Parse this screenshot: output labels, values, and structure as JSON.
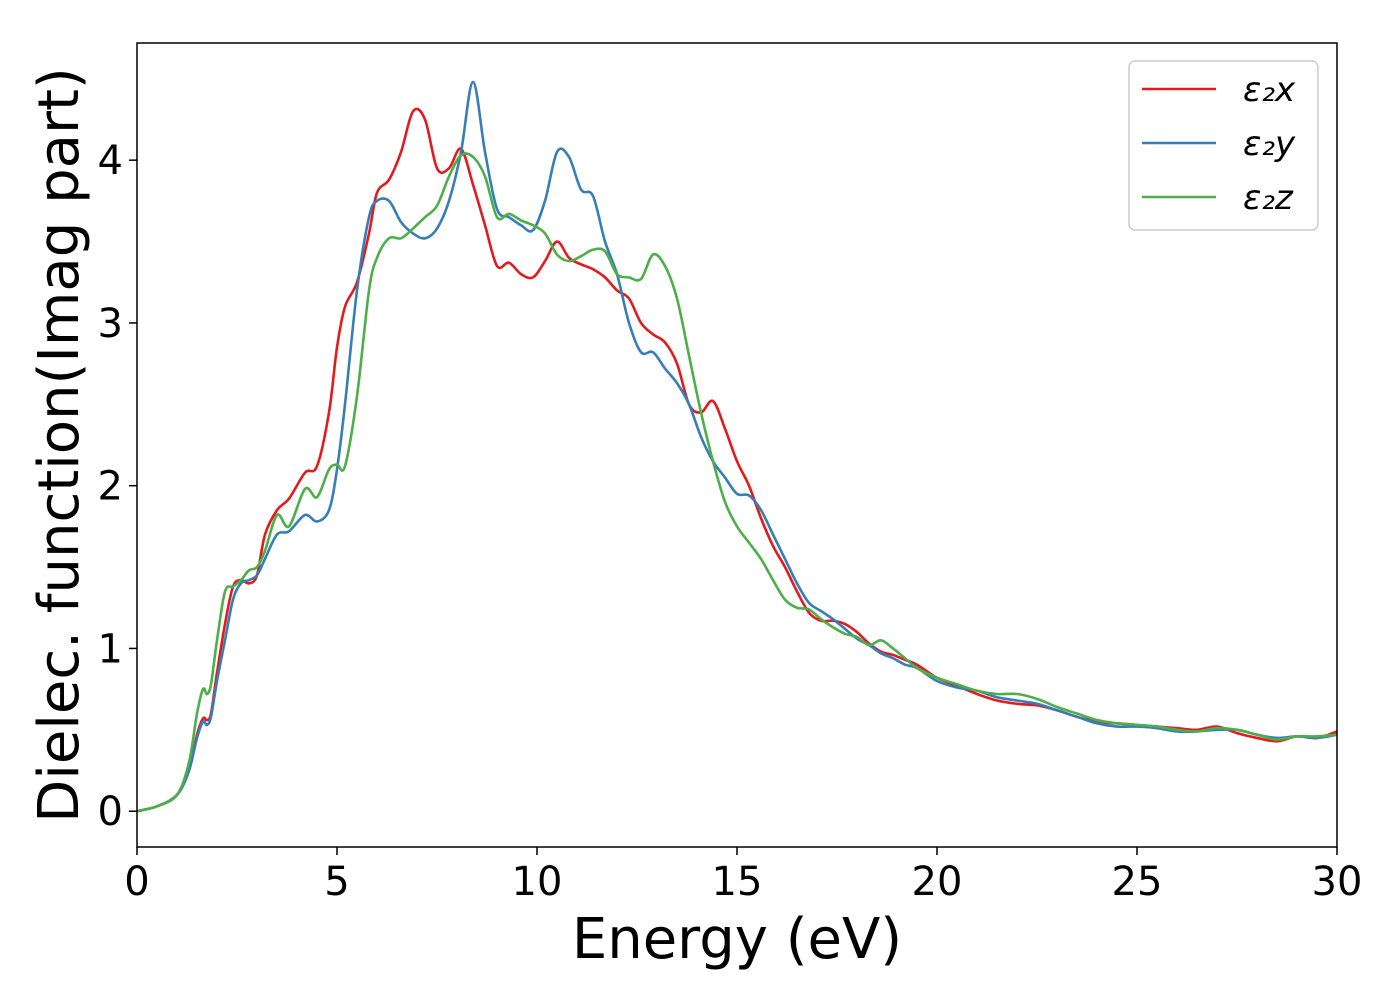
{
  "chart_data": {
    "type": "line",
    "title": "",
    "xlabel": "Energy (eV)",
    "ylabel": "Dielec. function(Imag part)",
    "xlim": [
      0,
      30
    ],
    "ylim": [
      -0.22,
      4.72
    ],
    "xticks": [
      0,
      5,
      10,
      15,
      20,
      25,
      30
    ],
    "yticks": [
      0,
      1,
      2,
      3,
      4
    ],
    "grid": false,
    "legend": "top-right",
    "series": [
      {
        "name": "ε₂x",
        "color": "#e41a1c",
        "x": [
          0,
          0.5,
          1.0,
          1.3,
          1.5,
          1.65,
          1.75,
          1.85,
          2.0,
          2.2,
          2.4,
          2.6,
          2.8,
          3.0,
          3.2,
          3.5,
          3.8,
          4.2,
          4.5,
          4.8,
          5.0,
          5.2,
          5.5,
          5.8,
          6.0,
          6.3,
          6.6,
          6.9,
          7.2,
          7.5,
          7.8,
          8.1,
          8.4,
          8.7,
          9.0,
          9.3,
          9.6,
          9.9,
          10.2,
          10.5,
          10.8,
          11.1,
          11.4,
          11.7,
          12.0,
          12.3,
          12.6,
          12.9,
          13.2,
          13.5,
          13.8,
          14.1,
          14.4,
          14.7,
          15.0,
          15.3,
          15.6,
          15.9,
          16.2,
          16.5,
          16.8,
          17.1,
          17.4,
          17.7,
          18.0,
          18.3,
          18.6,
          18.9,
          19.2,
          19.5,
          20.0,
          20.5,
          21.0,
          21.5,
          22.0,
          22.5,
          23.0,
          23.5,
          24.0,
          24.5,
          25.0,
          25.5,
          26.0,
          26.5,
          27.0,
          27.5,
          28.0,
          28.5,
          29.0,
          29.5,
          30.0
        ],
        "values": [
          0,
          0.03,
          0.1,
          0.25,
          0.47,
          0.57,
          0.56,
          0.6,
          0.85,
          1.15,
          1.38,
          1.42,
          1.4,
          1.45,
          1.7,
          1.85,
          1.92,
          2.08,
          2.12,
          2.45,
          2.85,
          3.1,
          3.25,
          3.55,
          3.8,
          3.88,
          4.05,
          4.3,
          4.25,
          3.95,
          3.95,
          4.07,
          3.85,
          3.6,
          3.35,
          3.37,
          3.3,
          3.28,
          3.38,
          3.5,
          3.4,
          3.36,
          3.33,
          3.28,
          3.2,
          3.15,
          3.0,
          2.93,
          2.88,
          2.75,
          2.5,
          2.45,
          2.52,
          2.35,
          2.15,
          2.0,
          1.8,
          1.63,
          1.5,
          1.35,
          1.22,
          1.17,
          1.17,
          1.15,
          1.1,
          1.03,
          0.98,
          0.96,
          0.93,
          0.9,
          0.82,
          0.77,
          0.72,
          0.68,
          0.66,
          0.65,
          0.62,
          0.58,
          0.55,
          0.54,
          0.53,
          0.52,
          0.51,
          0.5,
          0.52,
          0.48,
          0.45,
          0.43,
          0.46,
          0.45,
          0.49
        ]
      },
      {
        "name": "ε₂y",
        "color": "#377eb8",
        "x": [
          0,
          0.5,
          1.0,
          1.3,
          1.5,
          1.65,
          1.75,
          1.85,
          2.0,
          2.2,
          2.4,
          2.6,
          2.8,
          3.0,
          3.2,
          3.5,
          3.8,
          4.2,
          4.5,
          4.8,
          5.0,
          5.2,
          5.5,
          5.8,
          6.0,
          6.3,
          6.6,
          6.9,
          7.2,
          7.5,
          7.8,
          8.1,
          8.4,
          8.7,
          9.0,
          9.3,
          9.6,
          9.9,
          10.2,
          10.5,
          10.8,
          11.1,
          11.4,
          11.7,
          12.0,
          12.3,
          12.6,
          12.9,
          13.2,
          13.5,
          13.8,
          14.1,
          14.4,
          14.7,
          15.0,
          15.3,
          15.6,
          15.9,
          16.2,
          16.5,
          16.8,
          17.1,
          17.4,
          17.7,
          18.0,
          18.3,
          18.6,
          18.9,
          19.2,
          19.5,
          20.0,
          20.5,
          21.0,
          21.5,
          22.0,
          22.5,
          23.0,
          23.5,
          24.0,
          24.5,
          25.0,
          25.5,
          26.0,
          26.5,
          27.0,
          27.5,
          28.0,
          28.5,
          29.0,
          29.5,
          30.0
        ],
        "values": [
          0,
          0.03,
          0.1,
          0.25,
          0.45,
          0.55,
          0.53,
          0.58,
          0.8,
          1.05,
          1.3,
          1.4,
          1.42,
          1.45,
          1.55,
          1.7,
          1.72,
          1.82,
          1.78,
          1.85,
          2.1,
          2.5,
          3.2,
          3.65,
          3.75,
          3.75,
          3.62,
          3.55,
          3.52,
          3.58,
          3.75,
          4.05,
          4.48,
          4.05,
          3.7,
          3.65,
          3.6,
          3.57,
          3.75,
          4.05,
          4.02,
          3.82,
          3.78,
          3.5,
          3.3,
          3.0,
          2.82,
          2.82,
          2.72,
          2.63,
          2.5,
          2.3,
          2.15,
          2.05,
          1.95,
          1.94,
          1.85,
          1.7,
          1.55,
          1.4,
          1.28,
          1.23,
          1.18,
          1.12,
          1.06,
          1.02,
          0.97,
          0.94,
          0.9,
          0.88,
          0.8,
          0.76,
          0.74,
          0.7,
          0.68,
          0.66,
          0.62,
          0.58,
          0.54,
          0.52,
          0.52,
          0.51,
          0.49,
          0.49,
          0.5,
          0.5,
          0.47,
          0.45,
          0.46,
          0.45,
          0.47
        ]
      },
      {
        "name": "ε₂z",
        "color": "#4daf4a",
        "x": [
          0,
          0.5,
          1.0,
          1.3,
          1.5,
          1.65,
          1.75,
          1.85,
          2.0,
          2.2,
          2.4,
          2.6,
          2.8,
          3.0,
          3.2,
          3.5,
          3.8,
          4.2,
          4.5,
          4.8,
          5.0,
          5.2,
          5.5,
          5.8,
          6.0,
          6.3,
          6.6,
          6.9,
          7.2,
          7.5,
          7.8,
          8.1,
          8.4,
          8.7,
          9.0,
          9.3,
          9.6,
          9.9,
          10.2,
          10.5,
          10.8,
          11.1,
          11.4,
          11.7,
          12.0,
          12.3,
          12.6,
          12.9,
          13.2,
          13.5,
          13.8,
          14.1,
          14.4,
          14.7,
          15.0,
          15.3,
          15.6,
          15.9,
          16.2,
          16.5,
          16.8,
          17.1,
          17.4,
          17.7,
          18.0,
          18.3,
          18.6,
          18.9,
          19.2,
          19.5,
          20.0,
          20.5,
          21.0,
          21.5,
          22.0,
          22.5,
          23.0,
          23.5,
          24.0,
          24.5,
          25.0,
          25.5,
          26.0,
          26.5,
          27.0,
          27.5,
          28.0,
          28.5,
          29.0,
          29.5,
          30.0
        ],
        "values": [
          0,
          0.03,
          0.1,
          0.3,
          0.6,
          0.75,
          0.72,
          0.78,
          1.05,
          1.35,
          1.38,
          1.42,
          1.48,
          1.5,
          1.6,
          1.82,
          1.75,
          1.98,
          1.93,
          2.1,
          2.13,
          2.12,
          2.55,
          3.2,
          3.4,
          3.52,
          3.52,
          3.58,
          3.65,
          3.72,
          3.9,
          4.03,
          4.02,
          3.9,
          3.65,
          3.67,
          3.63,
          3.6,
          3.55,
          3.42,
          3.38,
          3.41,
          3.45,
          3.44,
          3.3,
          3.28,
          3.27,
          3.42,
          3.35,
          3.15,
          2.8,
          2.45,
          2.15,
          1.9,
          1.75,
          1.65,
          1.55,
          1.42,
          1.3,
          1.25,
          1.24,
          1.18,
          1.13,
          1.09,
          1.07,
          1.02,
          1.05,
          1.0,
          0.94,
          0.88,
          0.82,
          0.78,
          0.74,
          0.72,
          0.72,
          0.69,
          0.64,
          0.6,
          0.56,
          0.54,
          0.53,
          0.52,
          0.5,
          0.49,
          0.51,
          0.5,
          0.47,
          0.44,
          0.46,
          0.46,
          0.47
        ]
      }
    ]
  }
}
